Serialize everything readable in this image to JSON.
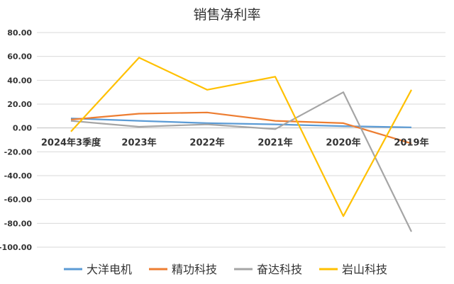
{
  "chart_data": {
    "type": "line",
    "title": "销售净利率",
    "categories": [
      "2024年3季度",
      "2023年",
      "2022年",
      "2021年",
      "2020年",
      "2019年"
    ],
    "ylim": [
      -100,
      80
    ],
    "yticks": [
      "80.00",
      "60.00",
      "40.00",
      "20.00",
      "0.00",
      "-20.00",
      "-40.00",
      "-60.00",
      "-80.00",
      "-100.00"
    ],
    "ytick_values": [
      80,
      60,
      40,
      20,
      0,
      -20,
      -40,
      -60,
      -80,
      -100
    ],
    "grid": true,
    "legend_position": "bottom",
    "series": [
      {
        "name": "大洋电机",
        "color": "#5b9bd5",
        "values": [
          8,
          6,
          4,
          3,
          1.5,
          0.5
        ]
      },
      {
        "name": "精功科技",
        "color": "#ed7d31",
        "values": [
          7,
          12,
          13,
          6,
          4,
          -13
        ]
      },
      {
        "name": "奋达科技",
        "color": "#a5a5a5",
        "values": [
          6,
          1,
          3,
          -1,
          30,
          -87
        ]
      },
      {
        "name": "岩山科技",
        "color": "#ffc000",
        "values": [
          -3,
          59,
          32,
          43,
          -74,
          32
        ]
      }
    ]
  }
}
